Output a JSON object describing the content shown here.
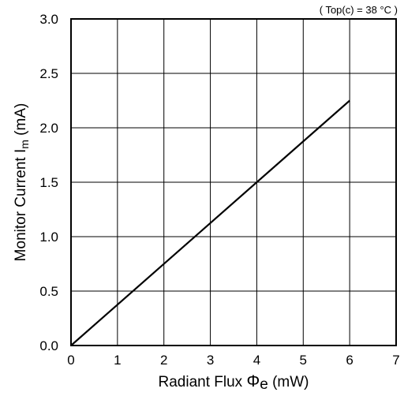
{
  "chart_data": {
    "type": "line",
    "title": "",
    "annotation": "( Top(c) = 38 °C )",
    "xlabel": {
      "prefix": "Radiant Flux ",
      "symbol": "Φ",
      "subscript": "e",
      "suffix": " (mW)"
    },
    "ylabel": {
      "prefix": "Monitor Current  I",
      "subscript": "m",
      "suffix": " (mA)"
    },
    "xlim": [
      0,
      7
    ],
    "ylim": [
      0,
      3.0
    ],
    "x_ticks": [
      "0",
      "1",
      "2",
      "3",
      "4",
      "5",
      "6",
      "7"
    ],
    "y_ticks": [
      "0.0",
      "0.5",
      "1.0",
      "1.5",
      "2.0",
      "2.5",
      "3.0"
    ],
    "grid": true,
    "series": [
      {
        "x": [
          0,
          6
        ],
        "y": [
          0,
          2.25
        ]
      }
    ]
  }
}
